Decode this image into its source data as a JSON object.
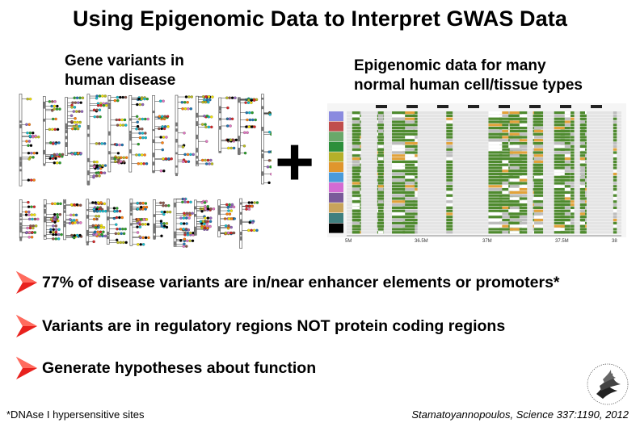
{
  "title": "Using Epigenomic Data to Interpret GWAS Data",
  "left_caption": [
    "Gene variants in",
    "human disease"
  ],
  "right_caption": [
    "Epigenomic data for many",
    "normal human cell/tissue types"
  ],
  "plus_symbol": "+",
  "bullets": [
    "77% of disease variants are in/near enhancer elements or promoters*",
    "Variants are in regulatory regions NOT protein coding regions",
    "Generate hypotheses about function"
  ],
  "footnote": "*DNAse I hypersensitive sites",
  "citation": "Stamatoyannopoulos, Science 337:1190, 2012",
  "epigenome_axis": [
    "5M",
    "36.5M",
    "37M",
    "37.5M",
    "38"
  ],
  "colors": {
    "bullet_arrow": "#e8211d",
    "track_green": "#4e8a2e",
    "track_gray": "#bdbdbd",
    "track_orange": "#e2a23a"
  }
}
